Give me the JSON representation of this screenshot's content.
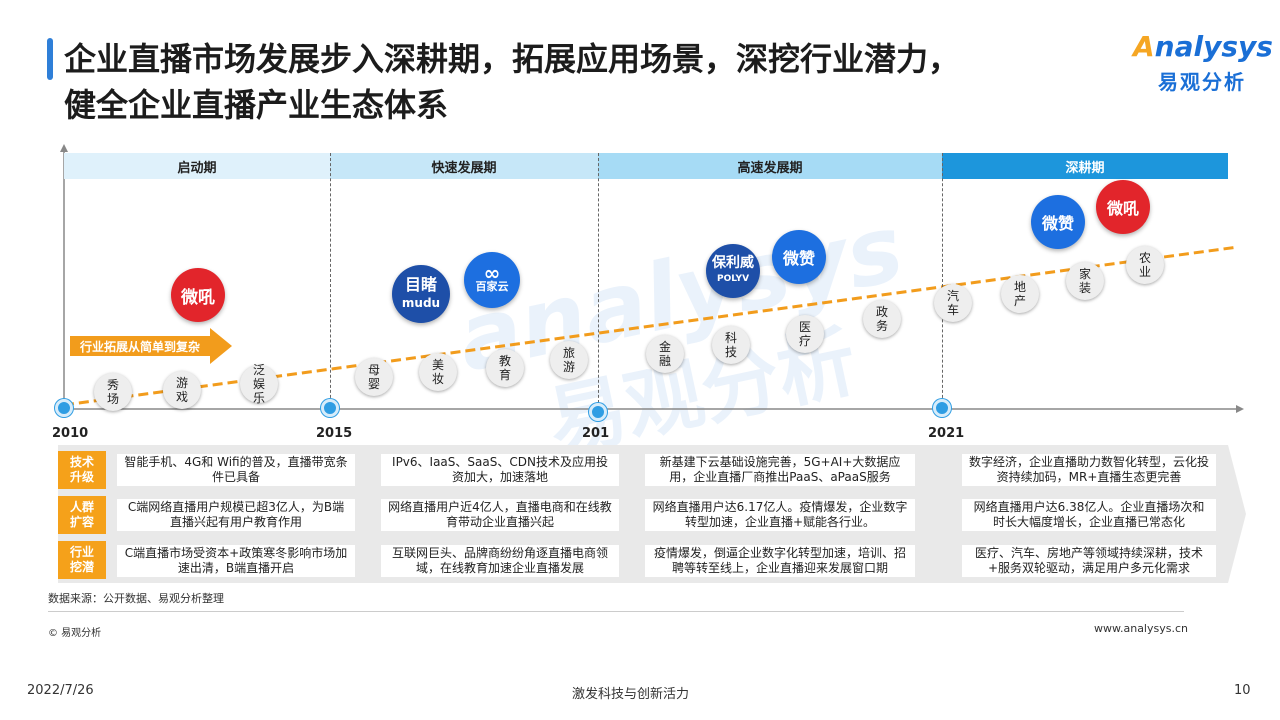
{
  "header": {
    "title_line1": "企业直播市场发展步入深耕期，拓展应用场景，深挖行业潜力，",
    "title_line2": "健全企业直播产业生态体系",
    "logo_en": "nalysys",
    "logo_en_initial": "A",
    "logo_cn": "易观分析"
  },
  "phases": [
    "启动期",
    "快速发展期",
    "高速发展期",
    "深耕期"
  ],
  "years": [
    "2010",
    "2015",
    "201",
    "2021"
  ],
  "timeline_nodes": [
    "秀场",
    "游戏",
    "泛娱乐",
    "母婴",
    "美妆",
    "教育",
    "旅游",
    "金融",
    "科技",
    "医疗",
    "政务",
    "汽车",
    "地产",
    "家装",
    "农业"
  ],
  "arrow_label": "行业拓展从简单到复杂",
  "brands": {
    "weihou": "微吼",
    "mudu_cn": "目睹",
    "mudu_en": "mudu",
    "baijiayun": "百家云",
    "polyv_cn": "保利威",
    "polyv_en": "POLYV",
    "weizan": "微赞"
  },
  "rows": [
    {
      "label": "技术\n升级",
      "cells": [
        "智能手机、4G和 Wifi的普及，直播带宽条件已具备",
        "IPv6、IaaS、SaaS、CDN技术及应用投资加大，加速落地",
        "新基建下云基础设施完善，5G+AI+大数据应用，企业直播厂商推出PaaS、aPaaS服务",
        "数字经济，企业直播助力数智化转型，云化投资持续加码，MR+直播生态更完善"
      ]
    },
    {
      "label": "人群\n扩容",
      "cells": [
        "C端网络直播用户规模已超3亿人，为B端直播兴起有用户教育作用",
        "网络直播用户近4亿人，直播电商和在线教育带动企业直播兴起",
        "网络直播用户达6.17亿人。疫情爆发，企业数字转型加速，企业直播+赋能各行业。",
        "网络直播用户达6.38亿人。企业直播场次和时长大幅度增长，企业直播已常态化"
      ]
    },
    {
      "label": "行业\n挖潜",
      "cells": [
        "C端直播市场受资本+政策寒冬影响市场加速出清，B端直播开启",
        "互联网巨头、品牌商纷纷角逐直播电商领域，在线教育加速企业直播发展",
        "疫情爆发，倒逼企业数字化转型加速，培训、招聘等转至线上，企业直播迎来发展窗口期",
        "医疗、汽车、房地产等领域持续深耕，技术+服务双轮驱动，满足用户多元化需求"
      ]
    }
  ],
  "footer": {
    "source": "数据来源：公开数据、易观分析整理",
    "copyright": "© 易观分析",
    "website": "www.analysys.cn",
    "date": "2022/7/26",
    "slogan": "激发科技与创新活力",
    "page": "10"
  },
  "watermark": {
    "en": "analysys",
    "cn": "易观分析"
  },
  "colors": {
    "accent_blue": "#2f7fd8",
    "timeline_orange": "#f29c1c",
    "row_label_orange": "#f5a11a",
    "brand_red": "#e2252b"
  }
}
